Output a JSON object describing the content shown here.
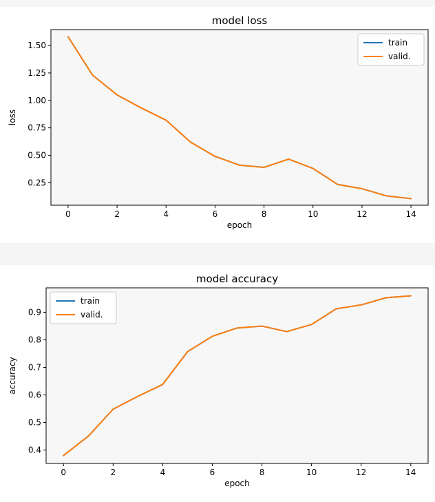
{
  "chart_data": [
    {
      "type": "line",
      "title": "model loss",
      "xlabel": "epoch",
      "ylabel": "loss",
      "x": [
        0,
        1,
        2,
        3,
        4,
        5,
        6,
        7,
        8,
        9,
        10,
        11,
        12,
        13,
        14
      ],
      "series": [
        {
          "name": "train",
          "color": "#1f77b4",
          "values": [
            1.58,
            1.23,
            1.05,
            0.93,
            0.82,
            0.62,
            0.49,
            0.41,
            0.39,
            0.465,
            0.38,
            0.235,
            0.195,
            0.13,
            0.105
          ]
        },
        {
          "name": "valid.",
          "color": "#ff7f0e",
          "values": [
            1.58,
            1.23,
            1.05,
            0.93,
            0.82,
            0.62,
            0.49,
            0.41,
            0.39,
            0.465,
            0.38,
            0.235,
            0.195,
            0.13,
            0.105
          ]
        }
      ],
      "xlim": [
        -0.7,
        14.7
      ],
      "ylim": [
        0.045,
        1.645
      ],
      "xticks": [
        0,
        2,
        4,
        6,
        8,
        10,
        12,
        14
      ],
      "xtick_labels": [
        "0",
        "2",
        "4",
        "6",
        "8",
        "10",
        "12",
        "14"
      ],
      "yticks": [
        0.25,
        0.5,
        0.75,
        1.0,
        1.25,
        1.5
      ],
      "ytick_labels": [
        "0.25",
        "0.50",
        "0.75",
        "1.00",
        "1.25",
        "1.50"
      ],
      "legend_position": "top-right",
      "grid": false,
      "plot_background": "#f7f7f7"
    },
    {
      "type": "line",
      "title": "model accuracy",
      "xlabel": "epoch",
      "ylabel": "accuracy",
      "x": [
        0,
        1,
        2,
        3,
        4,
        5,
        6,
        7,
        8,
        9,
        10,
        11,
        12,
        13,
        14
      ],
      "series": [
        {
          "name": "train",
          "color": "#1f77b4",
          "values": [
            0.38,
            0.45,
            0.548,
            0.595,
            0.638,
            0.757,
            0.813,
            0.843,
            0.85,
            0.83,
            0.856,
            0.913,
            0.927,
            0.953,
            0.96
          ]
        },
        {
          "name": "valid.",
          "color": "#ff7f0e",
          "values": [
            0.38,
            0.45,
            0.548,
            0.595,
            0.638,
            0.757,
            0.813,
            0.843,
            0.85,
            0.83,
            0.856,
            0.913,
            0.927,
            0.953,
            0.96
          ]
        }
      ],
      "xlim": [
        -0.7,
        14.7
      ],
      "ylim": [
        0.351,
        0.989
      ],
      "xticks": [
        0,
        2,
        4,
        6,
        8,
        10,
        12,
        14
      ],
      "xtick_labels": [
        "0",
        "2",
        "4",
        "6",
        "8",
        "10",
        "12",
        "14"
      ],
      "yticks": [
        0.4,
        0.5,
        0.6,
        0.7,
        0.8,
        0.9
      ],
      "ytick_labels": [
        "0.4",
        "0.5",
        "0.6",
        "0.7",
        "0.8",
        "0.9"
      ],
      "legend_position": "top-left",
      "grid": false,
      "plot_background": "#f7f7f7"
    }
  ]
}
